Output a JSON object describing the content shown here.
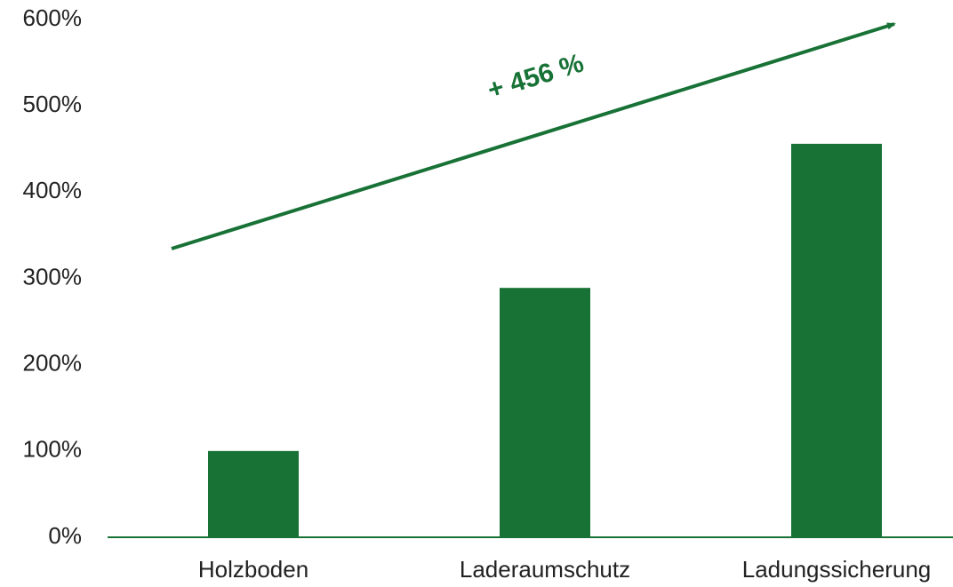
{
  "chart_data": {
    "type": "bar",
    "categories": [
      "Holzboden",
      "Laderaumschutz",
      "Ladungssicherung"
    ],
    "values": [
      100,
      289,
      456
    ],
    "color": "#187236",
    "ylim": [
      0,
      600
    ],
    "yticks": [
      {
        "value": 0,
        "label": "0%"
      },
      {
        "value": 100,
        "label": "100%"
      },
      {
        "value": 200,
        "label": "200%"
      },
      {
        "value": 300,
        "label": "300%"
      },
      {
        "value": 400,
        "label": "400%"
      },
      {
        "value": 500,
        "label": "500%"
      },
      {
        "value": 600,
        "label": "600%"
      }
    ],
    "grid": false,
    "annotation": "+ 456 %"
  }
}
